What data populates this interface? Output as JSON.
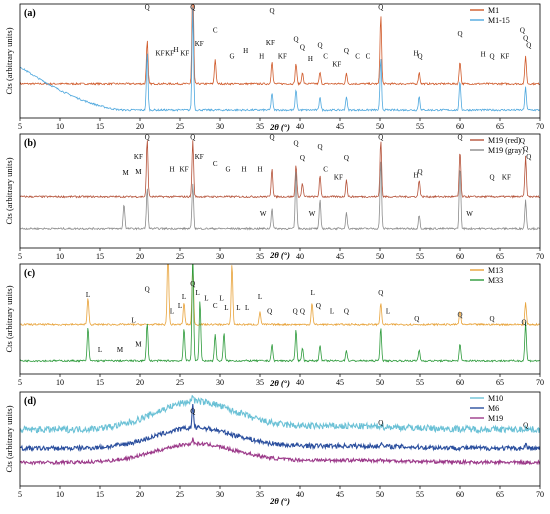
{
  "figure": {
    "panels": [
      "(a)",
      "(b)",
      "(c)",
      "(d)"
    ]
  },
  "chart_data": [
    {
      "type": "line",
      "panel": "(a)",
      "xlabel": "2θ (°)",
      "ylabel": "Cts (arbitrary units)",
      "xlim": [
        5,
        70
      ],
      "x_ticks": [
        5,
        10,
        15,
        20,
        25,
        30,
        35,
        40,
        45,
        50,
        55,
        60,
        65,
        70
      ],
      "grid": false,
      "legend_position": "top-right",
      "series": [
        {
          "name": "M1",
          "color": "#d05a2a",
          "baseline": 0.3,
          "peaks": [
            [
              20.9,
              0.38
            ],
            [
              26.6,
              0.95
            ],
            [
              29.4,
              0.22
            ],
            [
              36.5,
              0.2
            ],
            [
              39.5,
              0.18
            ],
            [
              40.3,
              0.1
            ],
            [
              42.5,
              0.1
            ],
            [
              45.8,
              0.09
            ],
            [
              50.1,
              0.6
            ],
            [
              54.9,
              0.1
            ],
            [
              60.0,
              0.2
            ],
            [
              68.2,
              0.25
            ]
          ]
        },
        {
          "name": "M1-15",
          "color": "#4fa8de",
          "baseline": 0.07,
          "broad": {
            "start": 5,
            "end": 18,
            "height": 0.38
          },
          "peaks": [
            [
              20.9,
              0.5
            ],
            [
              26.6,
              0.9
            ],
            [
              36.5,
              0.15
            ],
            [
              39.5,
              0.18
            ],
            [
              42.5,
              0.12
            ],
            [
              45.8,
              0.12
            ],
            [
              50.1,
              0.45
            ],
            [
              54.9,
              0.12
            ],
            [
              60.0,
              0.25
            ],
            [
              68.2,
              0.2
            ]
          ]
        }
      ],
      "annotations": [
        {
          "x": 20.9,
          "y": 0.95,
          "text": "Q"
        },
        {
          "x": 22.5,
          "y": 0.55,
          "text": "KF"
        },
        {
          "x": 23.7,
          "y": 0.55,
          "text": "KF"
        },
        {
          "x": 24.5,
          "y": 0.58,
          "text": "H"
        },
        {
          "x": 25.6,
          "y": 0.55,
          "text": "KF"
        },
        {
          "x": 26.6,
          "y": 0.95,
          "text": "Q"
        },
        {
          "x": 27.4,
          "y": 0.63,
          "text": "KF"
        },
        {
          "x": 29.4,
          "y": 0.75,
          "text": "C"
        },
        {
          "x": 31.5,
          "y": 0.52,
          "text": "G"
        },
        {
          "x": 33.2,
          "y": 0.57,
          "text": "H"
        },
        {
          "x": 35.2,
          "y": 0.52,
          "text": "H"
        },
        {
          "x": 36.3,
          "y": 0.64,
          "text": "KF"
        },
        {
          "x": 36.5,
          "y": 0.92,
          "text": "Q"
        },
        {
          "x": 37.8,
          "y": 0.52,
          "text": "KF"
        },
        {
          "x": 39.5,
          "y": 0.67,
          "text": "Q"
        },
        {
          "x": 40.3,
          "y": 0.6,
          "text": "Q"
        },
        {
          "x": 41.3,
          "y": 0.5,
          "text": "H"
        },
        {
          "x": 42.5,
          "y": 0.62,
          "text": "Q"
        },
        {
          "x": 43.2,
          "y": 0.52,
          "text": "C"
        },
        {
          "x": 44.6,
          "y": 0.45,
          "text": "KF"
        },
        {
          "x": 45.8,
          "y": 0.57,
          "text": "Q"
        },
        {
          "x": 47.2,
          "y": 0.52,
          "text": "C"
        },
        {
          "x": 48.5,
          "y": 0.52,
          "text": "C"
        },
        {
          "x": 50.1,
          "y": 0.95,
          "text": "Q"
        },
        {
          "x": 54.5,
          "y": 0.55,
          "text": "H"
        },
        {
          "x": 55.0,
          "y": 0.52,
          "text": "Q"
        },
        {
          "x": 60.0,
          "y": 0.72,
          "text": "Q"
        },
        {
          "x": 62.9,
          "y": 0.54,
          "text": "H"
        },
        {
          "x": 64.0,
          "y": 0.52,
          "text": "Q"
        },
        {
          "x": 65.6,
          "y": 0.52,
          "text": "KF"
        },
        {
          "x": 67.8,
          "y": 0.75,
          "text": "Q"
        },
        {
          "x": 68.2,
          "y": 0.68,
          "text": "Q"
        },
        {
          "x": 68.6,
          "y": 0.62,
          "text": "Q"
        }
      ]
    },
    {
      "type": "line",
      "panel": "(b)",
      "xlabel": "2θ (°)",
      "ylabel": "Cts (arbitrary units)",
      "xlim": [
        5,
        70
      ],
      "x_ticks": [
        5,
        10,
        15,
        20,
        25,
        30,
        35,
        40,
        45,
        50,
        55,
        60,
        65,
        70
      ],
      "grid": false,
      "legend_position": "top-right",
      "series": [
        {
          "name": "M19 (red)",
          "color": "#b5533a",
          "baseline": 0.45,
          "peaks": [
            [
              20.9,
              0.5
            ],
            [
              26.6,
              0.5
            ],
            [
              36.5,
              0.25
            ],
            [
              39.5,
              0.28
            ],
            [
              40.3,
              0.12
            ],
            [
              42.5,
              0.18
            ],
            [
              45.8,
              0.15
            ],
            [
              50.1,
              0.5
            ],
            [
              54.9,
              0.15
            ],
            [
              60.0,
              0.4
            ],
            [
              68.2,
              0.35
            ]
          ]
        },
        {
          "name": "M19 (gray)",
          "color": "#8c8c8c",
          "baseline": 0.17,
          "peaks": [
            [
              18.0,
              0.22
            ],
            [
              20.9,
              0.35
            ],
            [
              26.6,
              0.4
            ],
            [
              36.5,
              0.18
            ],
            [
              39.5,
              0.5
            ],
            [
              42.5,
              0.25
            ],
            [
              45.8,
              0.15
            ],
            [
              50.1,
              0.6
            ],
            [
              54.9,
              0.12
            ],
            [
              60.0,
              0.55
            ],
            [
              68.2,
              0.25
            ]
          ]
        }
      ],
      "annotations": [
        {
          "x": 18.2,
          "y": 0.64,
          "text": "M"
        },
        {
          "x": 19.8,
          "y": 0.78,
          "text": "KF"
        },
        {
          "x": 19.8,
          "y": 0.65,
          "text": "M"
        },
        {
          "x": 20.9,
          "y": 0.95,
          "text": "Q"
        },
        {
          "x": 24.0,
          "y": 0.67,
          "text": "H"
        },
        {
          "x": 25.5,
          "y": 0.67,
          "text": "KF"
        },
        {
          "x": 26.6,
          "y": 0.95,
          "text": "Q"
        },
        {
          "x": 27.4,
          "y": 0.78,
          "text": "KF"
        },
        {
          "x": 29.4,
          "y": 0.72,
          "text": "C"
        },
        {
          "x": 31.0,
          "y": 0.67,
          "text": "G"
        },
        {
          "x": 33.0,
          "y": 0.67,
          "text": "H"
        },
        {
          "x": 35.0,
          "y": 0.67,
          "text": "H"
        },
        {
          "x": 35.4,
          "y": 0.28,
          "text": "W"
        },
        {
          "x": 36.5,
          "y": 0.95,
          "text": "Q"
        },
        {
          "x": 39.5,
          "y": 0.9,
          "text": "Q"
        },
        {
          "x": 40.3,
          "y": 0.77,
          "text": "Q"
        },
        {
          "x": 41.5,
          "y": 0.28,
          "text": "W"
        },
        {
          "x": 42.5,
          "y": 0.87,
          "text": "Q"
        },
        {
          "x": 43.2,
          "y": 0.67,
          "text": "C"
        },
        {
          "x": 44.8,
          "y": 0.6,
          "text": "KF"
        },
        {
          "x": 45.8,
          "y": 0.77,
          "text": "Q"
        },
        {
          "x": 50.1,
          "y": 0.95,
          "text": "Q"
        },
        {
          "x": 54.5,
          "y": 0.62,
          "text": "H"
        },
        {
          "x": 55.0,
          "y": 0.65,
          "text": "Q"
        },
        {
          "x": 60.0,
          "y": 0.95,
          "text": "Q"
        },
        {
          "x": 61.2,
          "y": 0.28,
          "text": "W"
        },
        {
          "x": 64.0,
          "y": 0.6,
          "text": "Q"
        },
        {
          "x": 65.8,
          "y": 0.6,
          "text": "KF"
        },
        {
          "x": 67.8,
          "y": 0.92,
          "text": "Q"
        },
        {
          "x": 68.2,
          "y": 0.85,
          "text": "Q"
        },
        {
          "x": 68.6,
          "y": 0.78,
          "text": "Q"
        }
      ]
    },
    {
      "type": "line",
      "panel": "(c)",
      "xlabel": "2θ (°)",
      "ylabel": "Cts (arbitrary units)",
      "xlim": [
        5,
        70
      ],
      "x_ticks": [
        5,
        10,
        15,
        20,
        25,
        30,
        35,
        40,
        45,
        50,
        55,
        60,
        65,
        70
      ],
      "grid": false,
      "legend_position": "top-right",
      "series": [
        {
          "name": "M13",
          "color": "#e8a33a",
          "baseline": 0.45,
          "peaks": [
            [
              13.5,
              0.25
            ],
            [
              23.5,
              0.7
            ],
            [
              25.5,
              0.2
            ],
            [
              26.6,
              0.55
            ],
            [
              31.5,
              0.55
            ],
            [
              35.0,
              0.12
            ],
            [
              41.5,
              0.2
            ],
            [
              50.1,
              0.2
            ],
            [
              60.0,
              0.12
            ],
            [
              68.2,
              0.2
            ]
          ]
        },
        {
          "name": "M33",
          "color": "#2c9a3a",
          "baseline": 0.12,
          "peaks": [
            [
              13.5,
              0.3
            ],
            [
              20.9,
              0.35
            ],
            [
              25.5,
              0.3
            ],
            [
              26.6,
              1.0
            ],
            [
              27.5,
              0.55
            ],
            [
              29.4,
              0.25
            ],
            [
              30.5,
              0.25
            ],
            [
              36.5,
              0.15
            ],
            [
              39.5,
              0.28
            ],
            [
              40.3,
              0.12
            ],
            [
              42.5,
              0.15
            ],
            [
              45.8,
              0.1
            ],
            [
              50.1,
              0.3
            ],
            [
              54.9,
              0.1
            ],
            [
              60.0,
              0.15
            ],
            [
              68.2,
              0.35
            ]
          ]
        }
      ],
      "annotations": [
        {
          "x": 13.5,
          "y": 0.7,
          "text": "L"
        },
        {
          "x": 15.0,
          "y": 0.2,
          "text": "L"
        },
        {
          "x": 17.5,
          "y": 0.2,
          "text": "M"
        },
        {
          "x": 19.2,
          "y": 0.47,
          "text": "L"
        },
        {
          "x": 19.8,
          "y": 0.25,
          "text": "M"
        },
        {
          "x": 20.9,
          "y": 0.75,
          "text": "Q"
        },
        {
          "x": 24.0,
          "y": 0.55,
          "text": "L"
        },
        {
          "x": 25.0,
          "y": 0.6,
          "text": "L"
        },
        {
          "x": 25.5,
          "y": 0.68,
          "text": "L"
        },
        {
          "x": 26.6,
          "y": 0.8,
          "text": "Q"
        },
        {
          "x": 27.2,
          "y": 0.72,
          "text": "L"
        },
        {
          "x": 28.3,
          "y": 0.67,
          "text": "L"
        },
        {
          "x": 29.4,
          "y": 0.6,
          "text": "C"
        },
        {
          "x": 30.2,
          "y": 0.67,
          "text": "L"
        },
        {
          "x": 30.8,
          "y": 0.58,
          "text": "L"
        },
        {
          "x": 32.3,
          "y": 0.58,
          "text": "L"
        },
        {
          "x": 33.4,
          "y": 0.58,
          "text": "L"
        },
        {
          "x": 35.0,
          "y": 0.68,
          "text": "L"
        },
        {
          "x": 36.2,
          "y": 0.55,
          "text": "Q"
        },
        {
          "x": 39.4,
          "y": 0.55,
          "text": "Q"
        },
        {
          "x": 40.3,
          "y": 0.55,
          "text": "Q"
        },
        {
          "x": 41.6,
          "y": 0.72,
          "text": "L"
        },
        {
          "x": 42.3,
          "y": 0.6,
          "text": "Q"
        },
        {
          "x": 44.0,
          "y": 0.55,
          "text": "L"
        },
        {
          "x": 45.8,
          "y": 0.55,
          "text": "Q"
        },
        {
          "x": 50.1,
          "y": 0.72,
          "text": "Q"
        },
        {
          "x": 51.0,
          "y": 0.55,
          "text": "L"
        },
        {
          "x": 54.6,
          "y": 0.48,
          "text": "Q"
        },
        {
          "x": 60.0,
          "y": 0.52,
          "text": "Q"
        },
        {
          "x": 64.0,
          "y": 0.48,
          "text": "Q"
        },
        {
          "x": 68.0,
          "y": 0.45,
          "text": "Q"
        }
      ]
    },
    {
      "type": "line",
      "panel": "(d)",
      "xlabel": "2θ (°)",
      "ylabel": "Cts (arbitrary units)",
      "xlim": [
        5,
        70
      ],
      "x_ticks": [
        5,
        10,
        15,
        20,
        25,
        30,
        35,
        40,
        45,
        50,
        55,
        60,
        65,
        70
      ],
      "grid": false,
      "legend_position": "top-right",
      "series": [
        {
          "name": "M10",
          "color": "#6bc1d6",
          "baseline": 0.6,
          "hump": {
            "center": 27,
            "width": 5,
            "height": 0.3
          },
          "noise": 0.035,
          "peaks": [
            [
              26.6,
              0.08
            ],
            [
              50.1,
              0.03
            ],
            [
              68.2,
              0.03
            ]
          ]
        },
        {
          "name": "M6",
          "color": "#2b4f9e",
          "baseline": 0.4,
          "hump": {
            "center": 27,
            "width": 5,
            "height": 0.22
          },
          "noise": 0.025,
          "peaks": [
            [
              26.6,
              0.25
            ],
            [
              50.1,
              0.04
            ],
            [
              68.2,
              0.05
            ]
          ]
        },
        {
          "name": "M19",
          "color": "#9c3a8a",
          "baseline": 0.25,
          "hump": {
            "center": 27,
            "width": 5,
            "height": 0.2
          },
          "noise": 0.018,
          "peaks": [
            [
              26.6,
              0.05
            ],
            [
              50.1,
              0.02
            ]
          ]
        }
      ],
      "annotations": [
        {
          "x": 26.6,
          "y": 0.77,
          "text": "Q"
        },
        {
          "x": 50.1,
          "y": 0.65,
          "text": "Q"
        },
        {
          "x": 68.2,
          "y": 0.62,
          "text": "Q"
        }
      ]
    }
  ]
}
